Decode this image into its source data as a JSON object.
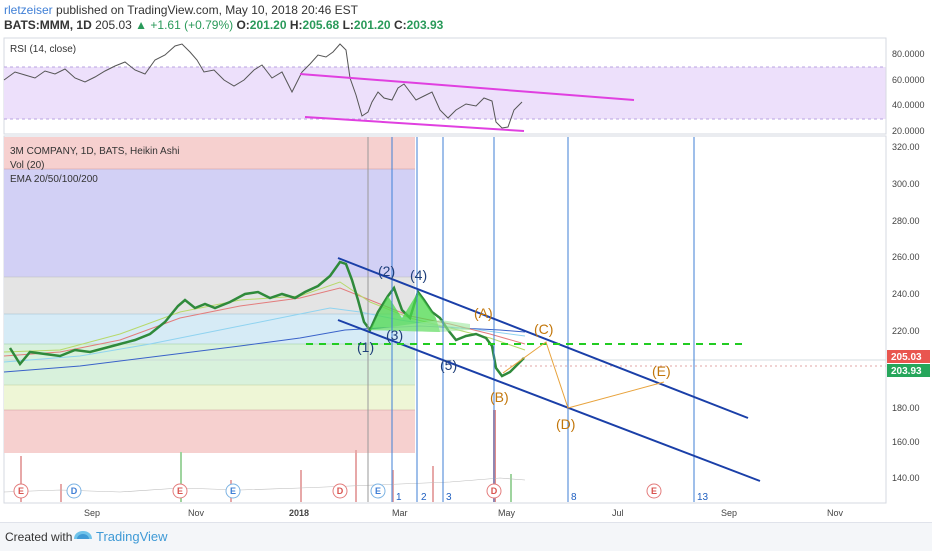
{
  "header": {
    "author": "rletzeiser",
    "published": "published on TradingView.com, May 10, 2018 20:46 EST",
    "symbol": "BATS:MMM, 1D",
    "price": "205.03",
    "change": "▲ +1.61 (+0.79%)",
    "open_label": "O:",
    "open": "201.20",
    "high_label": "H:",
    "high": "205.68",
    "low_label": "L:",
    "low": "201.20",
    "close_label": "C:",
    "close": "203.93"
  },
  "rsi_panel": {
    "title": "RSI (14, close)",
    "y_ticks": [
      "80.0000",
      "60.0000",
      "40.0000",
      "20.0000"
    ]
  },
  "main_panel": {
    "legend": [
      "3M COMPANY, 1D, BATS, Heikin Ashi",
      "Vol (20)",
      "EMA 20/50/100/200"
    ],
    "y_ticks": [
      "320.00",
      "300.00",
      "280.00",
      "260.00",
      "240.00",
      "220.00",
      "200.00",
      "180.00",
      "160.00",
      "140.00"
    ],
    "price_tag_1": "205.03",
    "price_tag_2": "203.93",
    "wave_labels": [
      "(1)",
      "(2)",
      "(3)",
      "(4)",
      "(5)",
      "(A)",
      "(B)",
      "(C)",
      "(D)",
      "(E)"
    ],
    "vline_labels": [
      "1",
      "2",
      "3",
      "8",
      "13"
    ],
    "event_markers": [
      "E",
      "D",
      "E",
      "E",
      "D",
      "E",
      "D",
      "E",
      "E"
    ],
    "x_ticks": [
      "Sep",
      "Nov",
      "2018",
      "Mar",
      "May",
      "Jul",
      "Sep",
      "Nov"
    ],
    "colors": {
      "rsi_line": "#555555",
      "rsi_channel": "#e040e0",
      "rsi_band": "#e9ddfb",
      "wave_blue": "#1f3f9a",
      "wave_orange": "#c2760a",
      "channel_line": "#1a3fa8",
      "dashed_green": "#22cc22",
      "vline": "#3f7fd6"
    }
  },
  "chart_data": {
    "type": "line",
    "title": "3M COMPANY, 1D, BATS, Heikin Ashi",
    "x_range": [
      "2017-07",
      "2018-11"
    ],
    "ylim": [
      130,
      325
    ],
    "series": [
      {
        "name": "3M COMPANY, 1D, BATS, Heikin Ashi",
        "x": [
          "2017-07",
          "2017-08",
          "2017-09",
          "2017-10",
          "2017-11",
          "2017-12",
          "2018-01",
          "2018-02",
          "2018-03",
          "2018-04",
          "2018-05"
        ],
        "values": [
          210,
          207,
          212,
          228,
          236,
          240,
          258,
          225,
          232,
          220,
          205
        ]
      }
    ],
    "rsi": {
      "ylim": [
        15,
        90
      ],
      "band": [
        30,
        70
      ]
    }
  },
  "footer": {
    "created": "Created with",
    "brand": "TradingView"
  }
}
